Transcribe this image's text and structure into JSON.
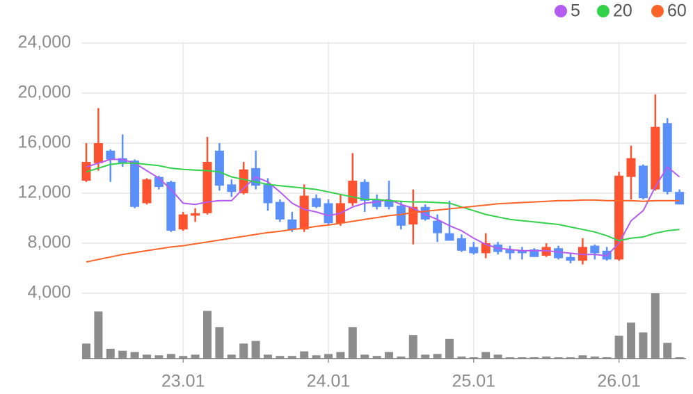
{
  "chart_data": {
    "type": "candlestick",
    "categories": [
      null,
      null,
      null,
      null,
      null,
      null,
      null,
      null,
      "23.01",
      null,
      null,
      null,
      null,
      null,
      null,
      null,
      null,
      null,
      null,
      null,
      "24.01",
      null,
      null,
      null,
      null,
      null,
      null,
      null,
      null,
      null,
      null,
      null,
      "25.01",
      null,
      null,
      null,
      null,
      null,
      null,
      null,
      null,
      null,
      null,
      null,
      "26.01",
      null,
      null,
      null,
      null,
      null
    ],
    "open": [
      13000,
      14400,
      15400,
      14800,
      14600,
      11200,
      13300,
      12900,
      9100,
      10200,
      10400,
      15400,
      12700,
      12000,
      14000,
      12700,
      11300,
      9900,
      9100,
      11600,
      11200,
      9600,
      11200,
      12900,
      11500,
      11400,
      11000,
      9500,
      10900,
      9800,
      8800,
      8400,
      7700,
      7200,
      7900,
      7500,
      7400,
      7500,
      7000,
      7600,
      6900,
      6600,
      7800,
      7400,
      6700,
      13300,
      14200,
      12300,
      17600,
      12100
    ],
    "high": [
      16000,
      18800,
      15500,
      16700,
      14700,
      13200,
      13400,
      13000,
      10500,
      10800,
      16500,
      16000,
      13100,
      14500,
      15400,
      13200,
      11500,
      10500,
      12700,
      11900,
      11500,
      11900,
      15200,
      13100,
      11900,
      13000,
      11300,
      12300,
      11100,
      10300,
      11400,
      8700,
      8100,
      8800,
      8100,
      7800,
      7700,
      7600,
      8000,
      7800,
      7200,
      8400,
      7900,
      7700,
      13700,
      15800,
      14300,
      19900,
      18000,
      12300
    ],
    "low": [
      12900,
      13800,
      12900,
      14100,
      10800,
      11100,
      12300,
      8900,
      9000,
      9700,
      10300,
      12200,
      11700,
      11900,
      12300,
      10600,
      9700,
      8900,
      8900,
      10800,
      9400,
      9400,
      11000,
      10500,
      10700,
      10700,
      9100,
      7900,
      9800,
      8100,
      8200,
      7300,
      7100,
      6800,
      7100,
      6700,
      6700,
      6900,
      6900,
      6700,
      6400,
      6300,
      6700,
      6600,
      6600,
      11500,
      11500,
      12200,
      11900,
      11100
    ],
    "close": [
      14500,
      16000,
      14700,
      14400,
      10900,
      13100,
      12500,
      9000,
      10300,
      10400,
      14500,
      12600,
      12100,
      13900,
      12600,
      11200,
      9900,
      9100,
      11800,
      10900,
      9600,
      11200,
      13000,
      11400,
      10900,
      10900,
      9400,
      10900,
      9900,
      8800,
      8200,
      7400,
      7200,
      8000,
      7300,
      7200,
      7200,
      6900,
      7700,
      6800,
      6600,
      7700,
      7200,
      6700,
      13400,
      14800,
      11600,
      17300,
      12100,
      11100
    ],
    "up_color": "#fd5230",
    "down_color": "#5b8ff9",
    "lines": [
      {
        "name": "5",
        "color": "#b45cf0",
        "values": [
          14100,
          14400,
          14700,
          14700,
          14400,
          13800,
          13200,
          12300,
          11200,
          11100,
          11300,
          11400,
          11400,
          12400,
          13300,
          12900,
          12100,
          11200,
          10700,
          10500,
          10200,
          10400,
          10900,
          11200,
          11300,
          11500,
          11100,
          10800,
          10300,
          9900,
          9400,
          9000,
          8400,
          7900,
          7600,
          7500,
          7400,
          7400,
          7400,
          7300,
          7200,
          7100,
          7100,
          7000,
          8000,
          9800,
          10600,
          12500,
          14100,
          13300
        ]
      },
      {
        "name": "20",
        "color": "#33d14a",
        "values": [
          13700,
          14000,
          14300,
          14400,
          14400,
          14300,
          14200,
          14000,
          13900,
          13850,
          13800,
          13700,
          13300,
          13100,
          12900,
          12700,
          12600,
          12500,
          12400,
          12300,
          12100,
          11900,
          11700,
          11500,
          11500,
          11400,
          11350,
          11300,
          11300,
          11250,
          11200,
          10900,
          10600,
          10300,
          10100,
          9900,
          9800,
          9700,
          9600,
          9500,
          9300,
          9100,
          8900,
          8600,
          8200,
          8400,
          8500,
          8800,
          9000,
          9100
        ]
      },
      {
        "name": "60",
        "color": "#fa6428",
        "values": [
          6500,
          6700,
          6900,
          7100,
          7250,
          7400,
          7550,
          7700,
          7800,
          7950,
          8100,
          8250,
          8400,
          8550,
          8700,
          8850,
          8950,
          9100,
          9200,
          9350,
          9450,
          9600,
          9750,
          9900,
          10050,
          10200,
          10300,
          10450,
          10550,
          10650,
          10750,
          10850,
          10950,
          11050,
          11150,
          11200,
          11250,
          11300,
          11350,
          11400,
          11400,
          11450,
          11450,
          11400,
          11400,
          11400,
          11350,
          11400,
          11400,
          11400
        ]
      }
    ],
    "volume": {
      "color": "#8c8c8c",
      "ylim": [
        0,
        100
      ],
      "values": [
        23,
        72,
        15,
        12,
        10,
        6,
        5,
        7,
        4,
        6,
        73,
        48,
        6,
        23,
        27,
        6,
        4,
        4,
        11,
        5,
        7,
        10,
        48,
        6,
        4,
        10,
        3,
        36,
        6,
        7,
        30,
        3,
        2,
        10,
        6,
        2,
        2,
        2,
        3,
        2,
        2,
        5,
        3,
        2,
        35,
        55,
        40,
        100,
        24,
        2
      ]
    },
    "ylim": [
      4000,
      25000
    ],
    "yticks": [
      {
        "value": 4000,
        "label": "4,000"
      },
      {
        "value": 8000,
        "label": "8,000"
      },
      {
        "value": 12000,
        "label": "12,000"
      },
      {
        "value": 16000,
        "label": "16,000"
      },
      {
        "value": 20000,
        "label": "20,000"
      },
      {
        "value": 24000,
        "label": "24,000"
      }
    ],
    "grid": true
  }
}
